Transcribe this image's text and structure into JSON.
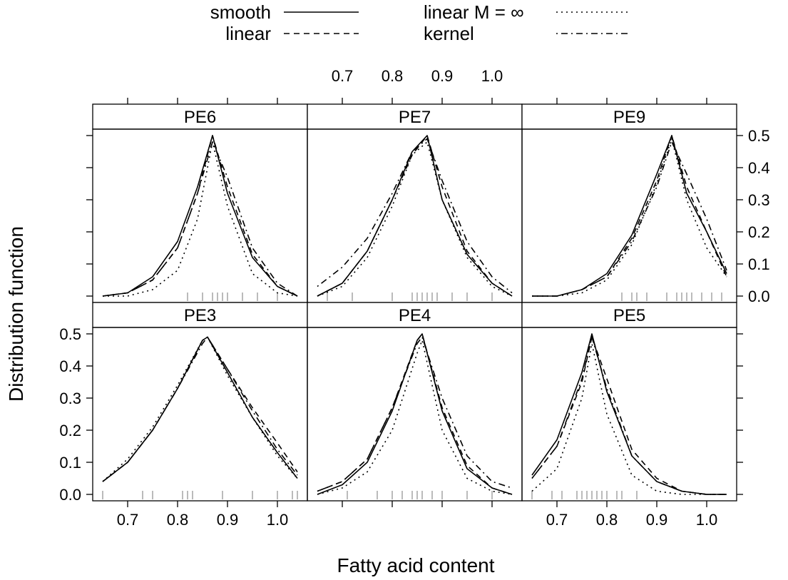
{
  "chart_data": {
    "type": "line",
    "xlabel": "Fatty acid content",
    "ylabel": "Distribution function",
    "xlim": [
      0.63,
      1.06
    ],
    "ylim": [
      -0.02,
      0.52
    ],
    "xticks": [
      0.7,
      0.8,
      0.9,
      1.0
    ],
    "xtick_labels": [
      "0.7",
      "0.8",
      "0.9",
      "1.0"
    ],
    "yticks": [
      0.0,
      0.1,
      0.2,
      0.3,
      0.4,
      0.5
    ],
    "ytick_labels": [
      "0.0",
      "0.1",
      "0.2",
      "0.3",
      "0.4",
      "0.5"
    ],
    "legend": {
      "placement": "top",
      "entries": [
        {
          "label": "smooth",
          "linestyle": "solid"
        },
        {
          "label": "linear",
          "linestyle": "dashed"
        },
        {
          "label": "linear M = ∞",
          "linestyle": "dotted"
        },
        {
          "label": "kernel",
          "linestyle": "dotdash"
        }
      ]
    },
    "panels": [
      {
        "name": "PE6",
        "row": 0,
        "col": 0,
        "x": [
          0.65,
          0.7,
          0.75,
          0.8,
          0.84,
          0.87,
          0.9,
          0.95,
          1.0,
          1.04
        ],
        "series": [
          {
            "name": "smooth",
            "values": [
              0.0,
              0.01,
              0.06,
              0.17,
              0.34,
              0.5,
              0.32,
              0.12,
              0.03,
              0.0
            ]
          },
          {
            "name": "linear",
            "values": [
              0.0,
              0.01,
              0.05,
              0.15,
              0.32,
              0.5,
              0.34,
              0.13,
              0.03,
              0.0
            ]
          },
          {
            "name": "linear M = ∞",
            "values": [
              0.0,
              0.0,
              0.02,
              0.08,
              0.24,
              0.48,
              0.28,
              0.07,
              0.01,
              0.0
            ]
          },
          {
            "name": "kernel",
            "values": [
              0.0,
              0.01,
              0.05,
              0.15,
              0.32,
              0.48,
              0.37,
              0.15,
              0.04,
              0.0
            ]
          }
        ],
        "rug": [
          0.82,
          0.85,
          0.87,
          0.88,
          0.89,
          0.9,
          0.93,
          0.96,
          1.0
        ]
      },
      {
        "name": "PE7",
        "row": 0,
        "col": 1,
        "x": [
          0.65,
          0.7,
          0.75,
          0.8,
          0.84,
          0.87,
          0.9,
          0.95,
          1.0,
          1.04
        ],
        "series": [
          {
            "name": "smooth",
            "values": [
              0.0,
              0.04,
              0.14,
              0.3,
              0.45,
              0.5,
              0.3,
              0.13,
              0.04,
              0.0
            ]
          },
          {
            "name": "linear",
            "values": [
              0.0,
              0.04,
              0.14,
              0.3,
              0.44,
              0.5,
              0.34,
              0.14,
              0.04,
              0.0
            ]
          },
          {
            "name": "linear M = ∞",
            "values": [
              0.0,
              0.03,
              0.12,
              0.28,
              0.44,
              0.48,
              0.3,
              0.12,
              0.03,
              0.0
            ]
          },
          {
            "name": "kernel",
            "values": [
              0.03,
              0.09,
              0.18,
              0.32,
              0.45,
              0.49,
              0.36,
              0.17,
              0.06,
              0.01
            ]
          }
        ],
        "rug": [
          0.67,
          0.72,
          0.8,
          0.84,
          0.85,
          0.86,
          0.87,
          0.88,
          0.89,
          0.92,
          0.95,
          1.0
        ]
      },
      {
        "name": "PE9",
        "row": 0,
        "col": 2,
        "x": [
          0.65,
          0.7,
          0.75,
          0.8,
          0.85,
          0.9,
          0.93,
          0.96,
          1.0,
          1.04
        ],
        "series": [
          {
            "name": "smooth",
            "values": [
              0.0,
              0.0,
              0.02,
              0.07,
              0.19,
              0.38,
              0.5,
              0.32,
              0.2,
              0.07
            ]
          },
          {
            "name": "linear",
            "values": [
              0.0,
              0.0,
              0.02,
              0.06,
              0.18,
              0.36,
              0.5,
              0.34,
              0.2,
              0.06
            ]
          },
          {
            "name": "linear M = ∞",
            "values": [
              0.0,
              0.0,
              0.01,
              0.05,
              0.16,
              0.35,
              0.49,
              0.3,
              0.15,
              0.06
            ]
          },
          {
            "name": "kernel",
            "values": [
              0.0,
              0.0,
              0.02,
              0.06,
              0.17,
              0.34,
              0.48,
              0.38,
              0.24,
              0.08
            ]
          }
        ],
        "rug": [
          0.83,
          0.85,
          0.86,
          0.88,
          0.92,
          0.94,
          0.95,
          0.96,
          0.97,
          0.99,
          1.01,
          1.03
        ]
      },
      {
        "name": "PE3",
        "row": 1,
        "col": 0,
        "x": [
          0.65,
          0.7,
          0.75,
          0.8,
          0.85,
          0.86,
          0.9,
          0.95,
          1.0,
          1.04
        ],
        "series": [
          {
            "name": "smooth",
            "values": [
              0.04,
              0.1,
              0.2,
              0.33,
              0.48,
              0.49,
              0.38,
              0.24,
              0.13,
              0.05
            ]
          },
          {
            "name": "linear",
            "values": [
              0.04,
              0.1,
              0.2,
              0.33,
              0.48,
              0.49,
              0.39,
              0.27,
              0.16,
              0.07
            ]
          },
          {
            "name": "linear M = ∞",
            "values": [
              0.04,
              0.11,
              0.21,
              0.34,
              0.48,
              0.49,
              0.37,
              0.24,
              0.12,
              0.05
            ]
          },
          {
            "name": "kernel",
            "values": [
              0.04,
              0.1,
              0.2,
              0.33,
              0.47,
              0.49,
              0.39,
              0.26,
              0.14,
              0.06
            ]
          }
        ],
        "rug": [
          0.65,
          0.73,
          0.75,
          0.81,
          0.82,
          0.83,
          0.89,
          0.95,
          1.0,
          1.03,
          1.04
        ]
      },
      {
        "name": "PE4",
        "row": 1,
        "col": 1,
        "x": [
          0.65,
          0.7,
          0.75,
          0.8,
          0.85,
          0.86,
          0.9,
          0.95,
          1.0,
          1.04
        ],
        "series": [
          {
            "name": "smooth",
            "values": [
              0.0,
              0.03,
              0.1,
              0.26,
              0.48,
              0.5,
              0.26,
              0.08,
              0.02,
              0.0
            ]
          },
          {
            "name": "linear",
            "values": [
              0.01,
              0.04,
              0.11,
              0.27,
              0.48,
              0.5,
              0.27,
              0.09,
              0.02,
              0.0
            ]
          },
          {
            "name": "linear M = ∞",
            "values": [
              0.0,
              0.02,
              0.07,
              0.2,
              0.44,
              0.48,
              0.2,
              0.05,
              0.01,
              0.0
            ]
          },
          {
            "name": "kernel",
            "values": [
              0.01,
              0.04,
              0.11,
              0.27,
              0.47,
              0.49,
              0.3,
              0.12,
              0.04,
              0.02
            ]
          }
        ],
        "rug": [
          0.71,
          0.77,
          0.8,
          0.82,
          0.84,
          0.85,
          0.86,
          0.88,
          0.9,
          0.95,
          1.0
        ]
      },
      {
        "name": "PE5",
        "row": 1,
        "col": 2,
        "x": [
          0.65,
          0.7,
          0.75,
          0.77,
          0.8,
          0.85,
          0.9,
          0.95,
          1.0,
          1.04
        ],
        "series": [
          {
            "name": "smooth",
            "values": [
              0.06,
              0.17,
              0.38,
              0.5,
              0.32,
              0.12,
              0.04,
              0.01,
              0.0,
              0.0
            ]
          },
          {
            "name": "linear",
            "values": [
              0.05,
              0.15,
              0.35,
              0.49,
              0.36,
              0.14,
              0.05,
              0.01,
              0.0,
              0.0
            ]
          },
          {
            "name": "linear M = ∞",
            "values": [
              0.01,
              0.08,
              0.3,
              0.47,
              0.25,
              0.06,
              0.01,
              0.0,
              0.0,
              0.0
            ]
          },
          {
            "name": "kernel",
            "values": [
              0.05,
              0.15,
              0.36,
              0.49,
              0.33,
              0.12,
              0.04,
              0.01,
              0.0,
              0.0
            ]
          }
        ],
        "rug": [
          0.65,
          0.69,
          0.71,
          0.74,
          0.75,
          0.76,
          0.77,
          0.78,
          0.79,
          0.8,
          0.82,
          0.83,
          0.86
        ]
      }
    ]
  }
}
